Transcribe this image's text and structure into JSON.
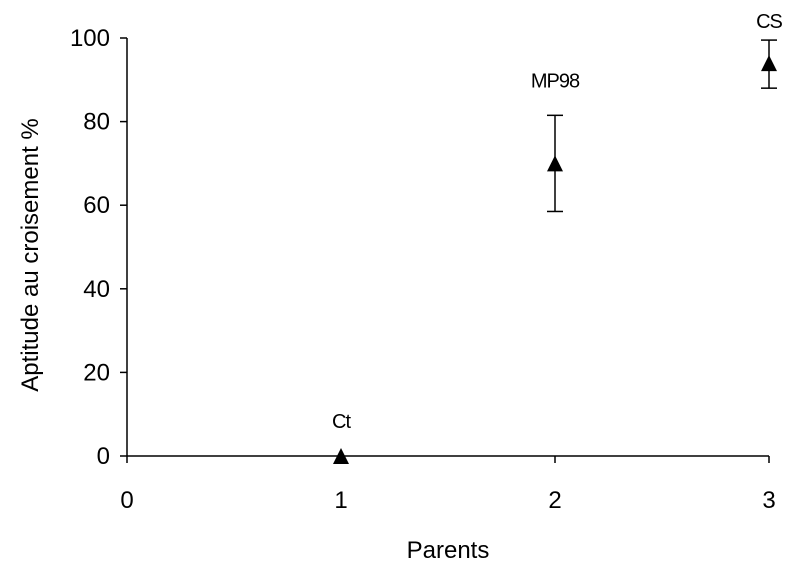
{
  "chart_data": {
    "type": "scatter",
    "title": "",
    "xlabel": "Parents",
    "ylabel": "Aptitude au croisement %",
    "xlim": [
      0,
      3
    ],
    "ylim": [
      0,
      100
    ],
    "x_ticks": [
      "0",
      "1",
      "2",
      "3"
    ],
    "y_ticks": [
      "0",
      "20",
      "40",
      "60",
      "80",
      "100"
    ],
    "grid": false,
    "legend": "none",
    "marker": "triangle",
    "color": "#000000",
    "points": [
      {
        "label": "Ct",
        "x": 1,
        "y": 0,
        "err_low": 0,
        "err_high": 0
      },
      {
        "label": "MP98",
        "x": 2,
        "y": 70,
        "err_low": 58.5,
        "err_high": 81.5
      },
      {
        "label": "CS",
        "x": 3,
        "y": 94,
        "err_low": 88,
        "err_high": 99.5
      }
    ]
  }
}
